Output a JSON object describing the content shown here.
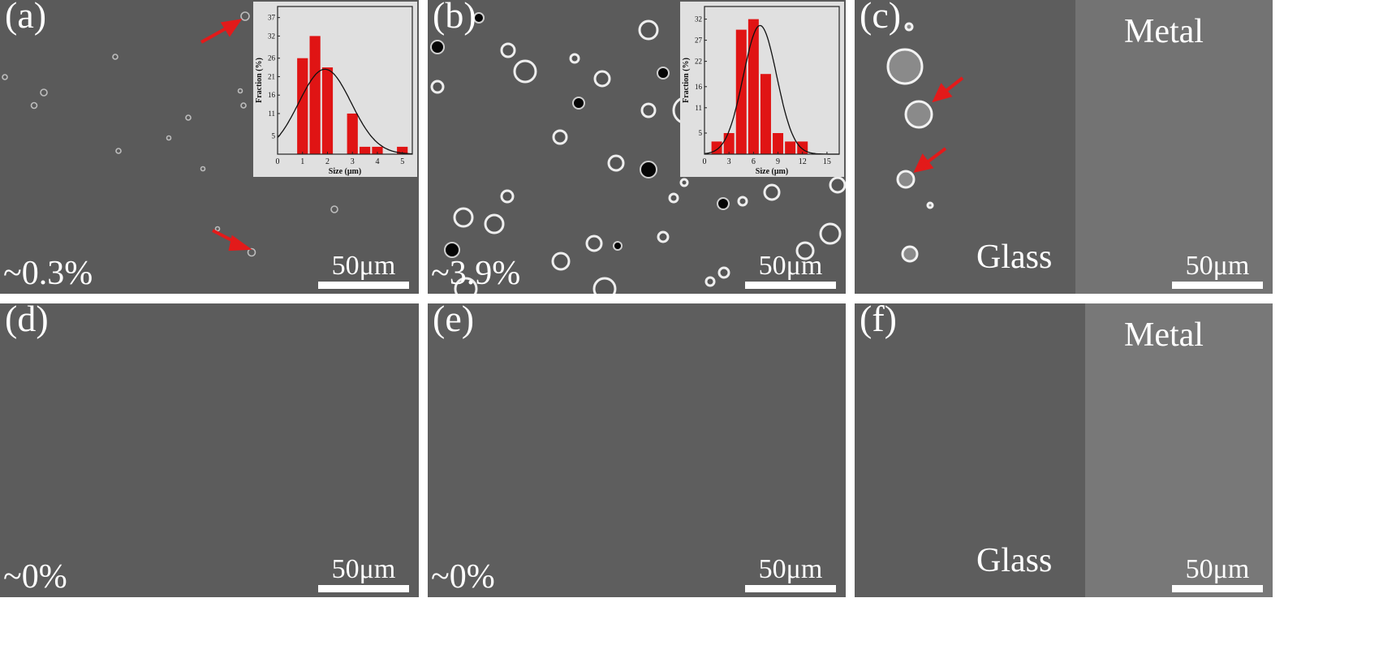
{
  "panels": [
    {
      "label": "(a)",
      "fraction": "~0.3%",
      "scale": "50μm"
    },
    {
      "label": "(b)",
      "fraction": "~3.9%",
      "scale": "50μm"
    },
    {
      "label": "(c)",
      "fraction": "",
      "scale": "50μm",
      "glass": "Glass",
      "metal": "Metal"
    },
    {
      "label": "(d)",
      "fraction": "~0%",
      "scale": "50μm"
    },
    {
      "label": "(e)",
      "fraction": "~0%",
      "scale": "50μm"
    },
    {
      "label": "(f)",
      "fraction": "",
      "scale": "50μm",
      "glass": "Glass",
      "metal": "Metal"
    }
  ],
  "colors": {
    "bars": "#e01414",
    "arrows": "#e31a1a",
    "sem_gray": "#5a5a5a",
    "metal_gray": "#737373"
  },
  "chart_data": [
    {
      "type": "bar",
      "panel": "(a)",
      "xlabel": "Size (μm)",
      "ylabel": "Fraction (%)",
      "x": [
        1.0,
        1.5,
        2.0,
        3.0,
        3.5,
        4.0,
        5.0
      ],
      "values": [
        26,
        32,
        23.5,
        11,
        2,
        2,
        2
      ],
      "xticks": [
        0,
        1,
        2,
        3,
        4,
        5
      ],
      "yticks": [
        5,
        11,
        16,
        21,
        26,
        32,
        37
      ],
      "xlim": [
        0,
        5.4
      ],
      "ylim": [
        0,
        40
      ],
      "fit": "gaussian",
      "fit_params": {
        "mu": 1.9,
        "sigma": 1.05,
        "peak": 23
      }
    },
    {
      "type": "bar",
      "panel": "(b)",
      "xlabel": "Size (μm)",
      "ylabel": "Fraction (%)",
      "x": [
        1.5,
        3,
        4.5,
        6,
        7.5,
        9,
        10.5,
        12,
        13.5
      ],
      "values": [
        3,
        5,
        29.5,
        32,
        19,
        5,
        3,
        3,
        0
      ],
      "xticks": [
        0,
        3,
        6,
        9,
        12,
        15
      ],
      "yticks": [
        5,
        11,
        16,
        22,
        27,
        32
      ],
      "xlim": [
        0,
        16.5
      ],
      "ylim": [
        0,
        35
      ],
      "fit": "gaussian",
      "fit_params": {
        "mu": 6.8,
        "sigma": 2.05,
        "peak": 30.5
      }
    }
  ]
}
